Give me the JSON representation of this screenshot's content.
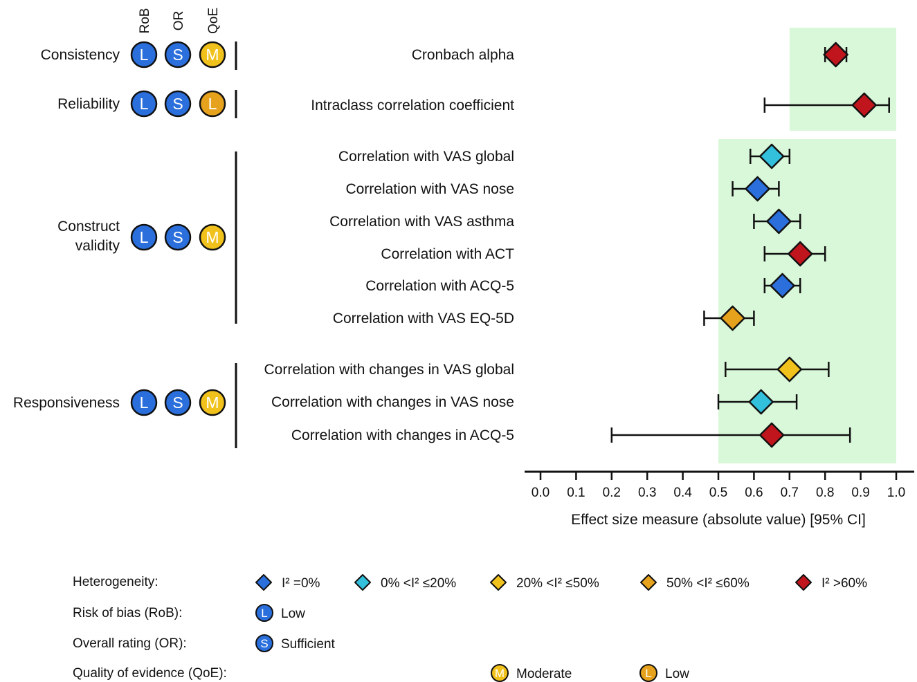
{
  "chart_data": {
    "type": "forest",
    "xlabel": "Effect size measure (absolute value) [95% CI]",
    "xlim": [
      0.0,
      1.0
    ],
    "xticks": [
      "0.0",
      "0.1",
      "0.2",
      "0.3",
      "0.4",
      "0.5",
      "0.6",
      "0.7",
      "0.8",
      "0.9",
      "1.0"
    ],
    "column_headers": [
      "RoB",
      "OR",
      "QoE"
    ],
    "groups": [
      {
        "label": [
          "Consistency"
        ],
        "ratings": [
          "L",
          "S",
          "M"
        ],
        "items": [
          {
            "label": "Cronbach alpha",
            "estimate": 0.83,
            "lower": 0.8,
            "upper": 0.86,
            "heterogeneity": "high"
          }
        ]
      },
      {
        "label": [
          "Reliability"
        ],
        "ratings": [
          "L",
          "S",
          "L"
        ],
        "items": [
          {
            "label": "Intraclass correlation coefficient",
            "estimate": 0.91,
            "lower": 0.63,
            "upper": 0.98,
            "heterogeneity": "high"
          }
        ]
      },
      {
        "label": [
          "Construct",
          "validity"
        ],
        "ratings": [
          "L",
          "S",
          "M"
        ],
        "items": [
          {
            "label": "Correlation with VAS global",
            "estimate": 0.65,
            "lower": 0.59,
            "upper": 0.7,
            "heterogeneity": "low"
          },
          {
            "label": "Correlation with VAS nose",
            "estimate": 0.61,
            "lower": 0.54,
            "upper": 0.67,
            "heterogeneity": "zero"
          },
          {
            "label": "Correlation with VAS asthma",
            "estimate": 0.67,
            "lower": 0.6,
            "upper": 0.73,
            "heterogeneity": "zero"
          },
          {
            "label": "Correlation with ACT",
            "estimate": 0.73,
            "lower": 0.63,
            "upper": 0.8,
            "heterogeneity": "high"
          },
          {
            "label": "Correlation with ACQ-5",
            "estimate": 0.68,
            "lower": 0.63,
            "upper": 0.73,
            "heterogeneity": "zero"
          },
          {
            "label": "Correlation with VAS EQ-5D",
            "estimate": 0.54,
            "lower": 0.46,
            "upper": 0.6,
            "heterogeneity": "midhigh"
          }
        ]
      },
      {
        "label": [
          "Responsiveness"
        ],
        "ratings": [
          "L",
          "S",
          "M"
        ],
        "items": [
          {
            "label": "Correlation with changes in VAS global",
            "estimate": 0.7,
            "lower": 0.52,
            "upper": 0.81,
            "heterogeneity": "mid"
          },
          {
            "label": "Correlation with changes in VAS nose",
            "estimate": 0.62,
            "lower": 0.5,
            "upper": 0.72,
            "heterogeneity": "low"
          },
          {
            "label": "Correlation with changes in ACQ-5",
            "estimate": 0.65,
            "lower": 0.2,
            "upper": 0.87,
            "heterogeneity": "high"
          }
        ]
      }
    ],
    "shaded_regions": [
      {
        "from": 0.7,
        "to": 1.0,
        "groups": [
          "Consistency",
          "Reliability"
        ]
      },
      {
        "from": 0.5,
        "to": 1.0,
        "groups": [
          "Construct validity",
          "Responsiveness"
        ]
      }
    ]
  },
  "colors": {
    "zero": "#2a6fdc",
    "low": "#33c0dc",
    "mid": "#f2c21c",
    "midhigh": "#e6a21c",
    "high": "#c0151c",
    "badge_L_rob": "#2a6fdc",
    "badge_S": "#2a6fdc",
    "badge_M": "#f2c21c",
    "badge_L_qoe": "#e6a21c",
    "shade": "#d9f7d9"
  },
  "legend": {
    "heterogeneity_label": "Heterogeneity:",
    "heterogeneity": [
      {
        "key": "zero",
        "text": "I² =0%"
      },
      {
        "key": "low",
        "text": "0% <I² ≤20%"
      },
      {
        "key": "mid",
        "text": "20% <I² ≤50%"
      },
      {
        "key": "midhigh",
        "text": "50% <I² ≤60%"
      },
      {
        "key": "high",
        "text": "I² >60%"
      }
    ],
    "rob_label": "Risk of bias (RoB):",
    "rob_items": [
      {
        "letter": "L",
        "text": "Low"
      }
    ],
    "or_label": "Overall rating (OR):",
    "or_items": [
      {
        "letter": "S",
        "text": "Sufficient"
      }
    ],
    "qoe_label": "Quality of evidence (QoE):",
    "qoe_items": [
      {
        "letter": "M",
        "text": "Moderate"
      },
      {
        "letter": "L",
        "text": "Low"
      }
    ]
  }
}
